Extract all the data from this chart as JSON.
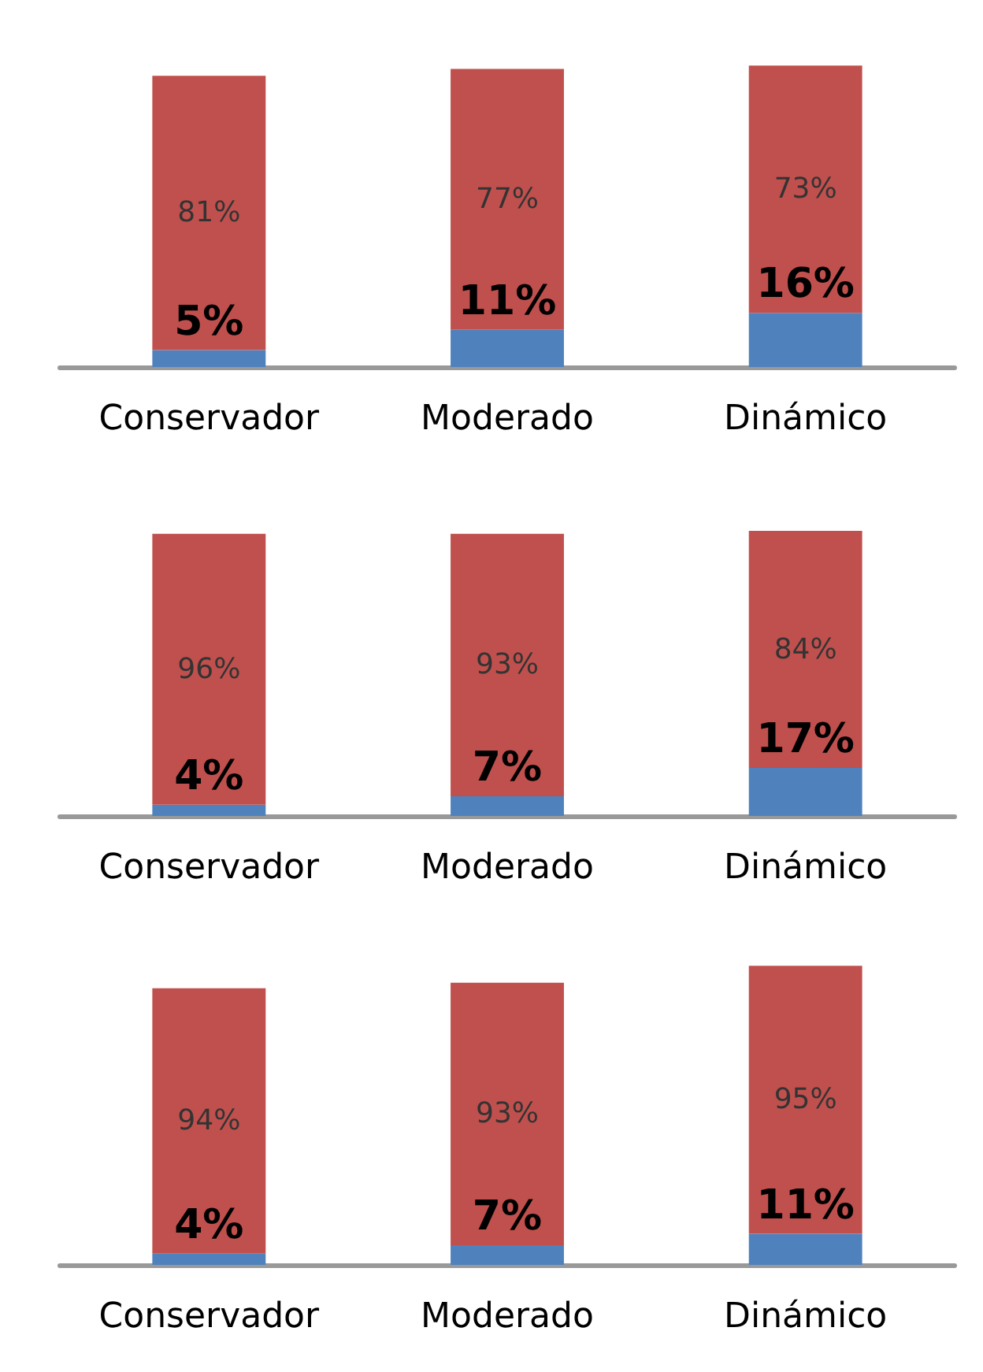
{
  "chart_data": [
    {
      "type": "bar",
      "stacked": true,
      "categories": [
        "Conservador",
        "Moderado",
        "Dinámico"
      ],
      "tick_labels": "x",
      "series": [
        {
          "color": "#4f81bd",
          "values": [
            5,
            11,
            16
          ],
          "value_labels": [
            "5%",
            "11%",
            "16%"
          ]
        },
        {
          "color": "#c0504d",
          "values": [
            81,
            77,
            73
          ],
          "value_labels": [
            "81%",
            "77%",
            "73%"
          ]
        }
      ]
    },
    {
      "type": "bar",
      "stacked": true,
      "categories": [
        "Conservador",
        "Moderado",
        "Dinámico"
      ],
      "tick_labels": "x",
      "series": [
        {
          "color": "#4f81bd",
          "values": [
            4,
            7,
            17
          ],
          "value_labels": [
            "4%",
            "7%",
            "17%"
          ]
        },
        {
          "color": "#c0504d",
          "values": [
            96,
            93,
            84
          ],
          "value_labels": [
            "96%",
            "93%",
            "84%"
          ]
        }
      ]
    },
    {
      "type": "bar",
      "stacked": true,
      "categories": [
        "Conservador",
        "Moderado",
        "Dinámico"
      ],
      "tick_labels": "x",
      "series": [
        {
          "color": "#4f81bd",
          "values": [
            4,
            7,
            11
          ],
          "value_labels": [
            "4%",
            "7%",
            "11%"
          ]
        },
        {
          "color": "#c0504d",
          "values": [
            94,
            93,
            95
          ],
          "value_labels": [
            "94%",
            "93%",
            "95%"
          ]
        }
      ]
    }
  ]
}
